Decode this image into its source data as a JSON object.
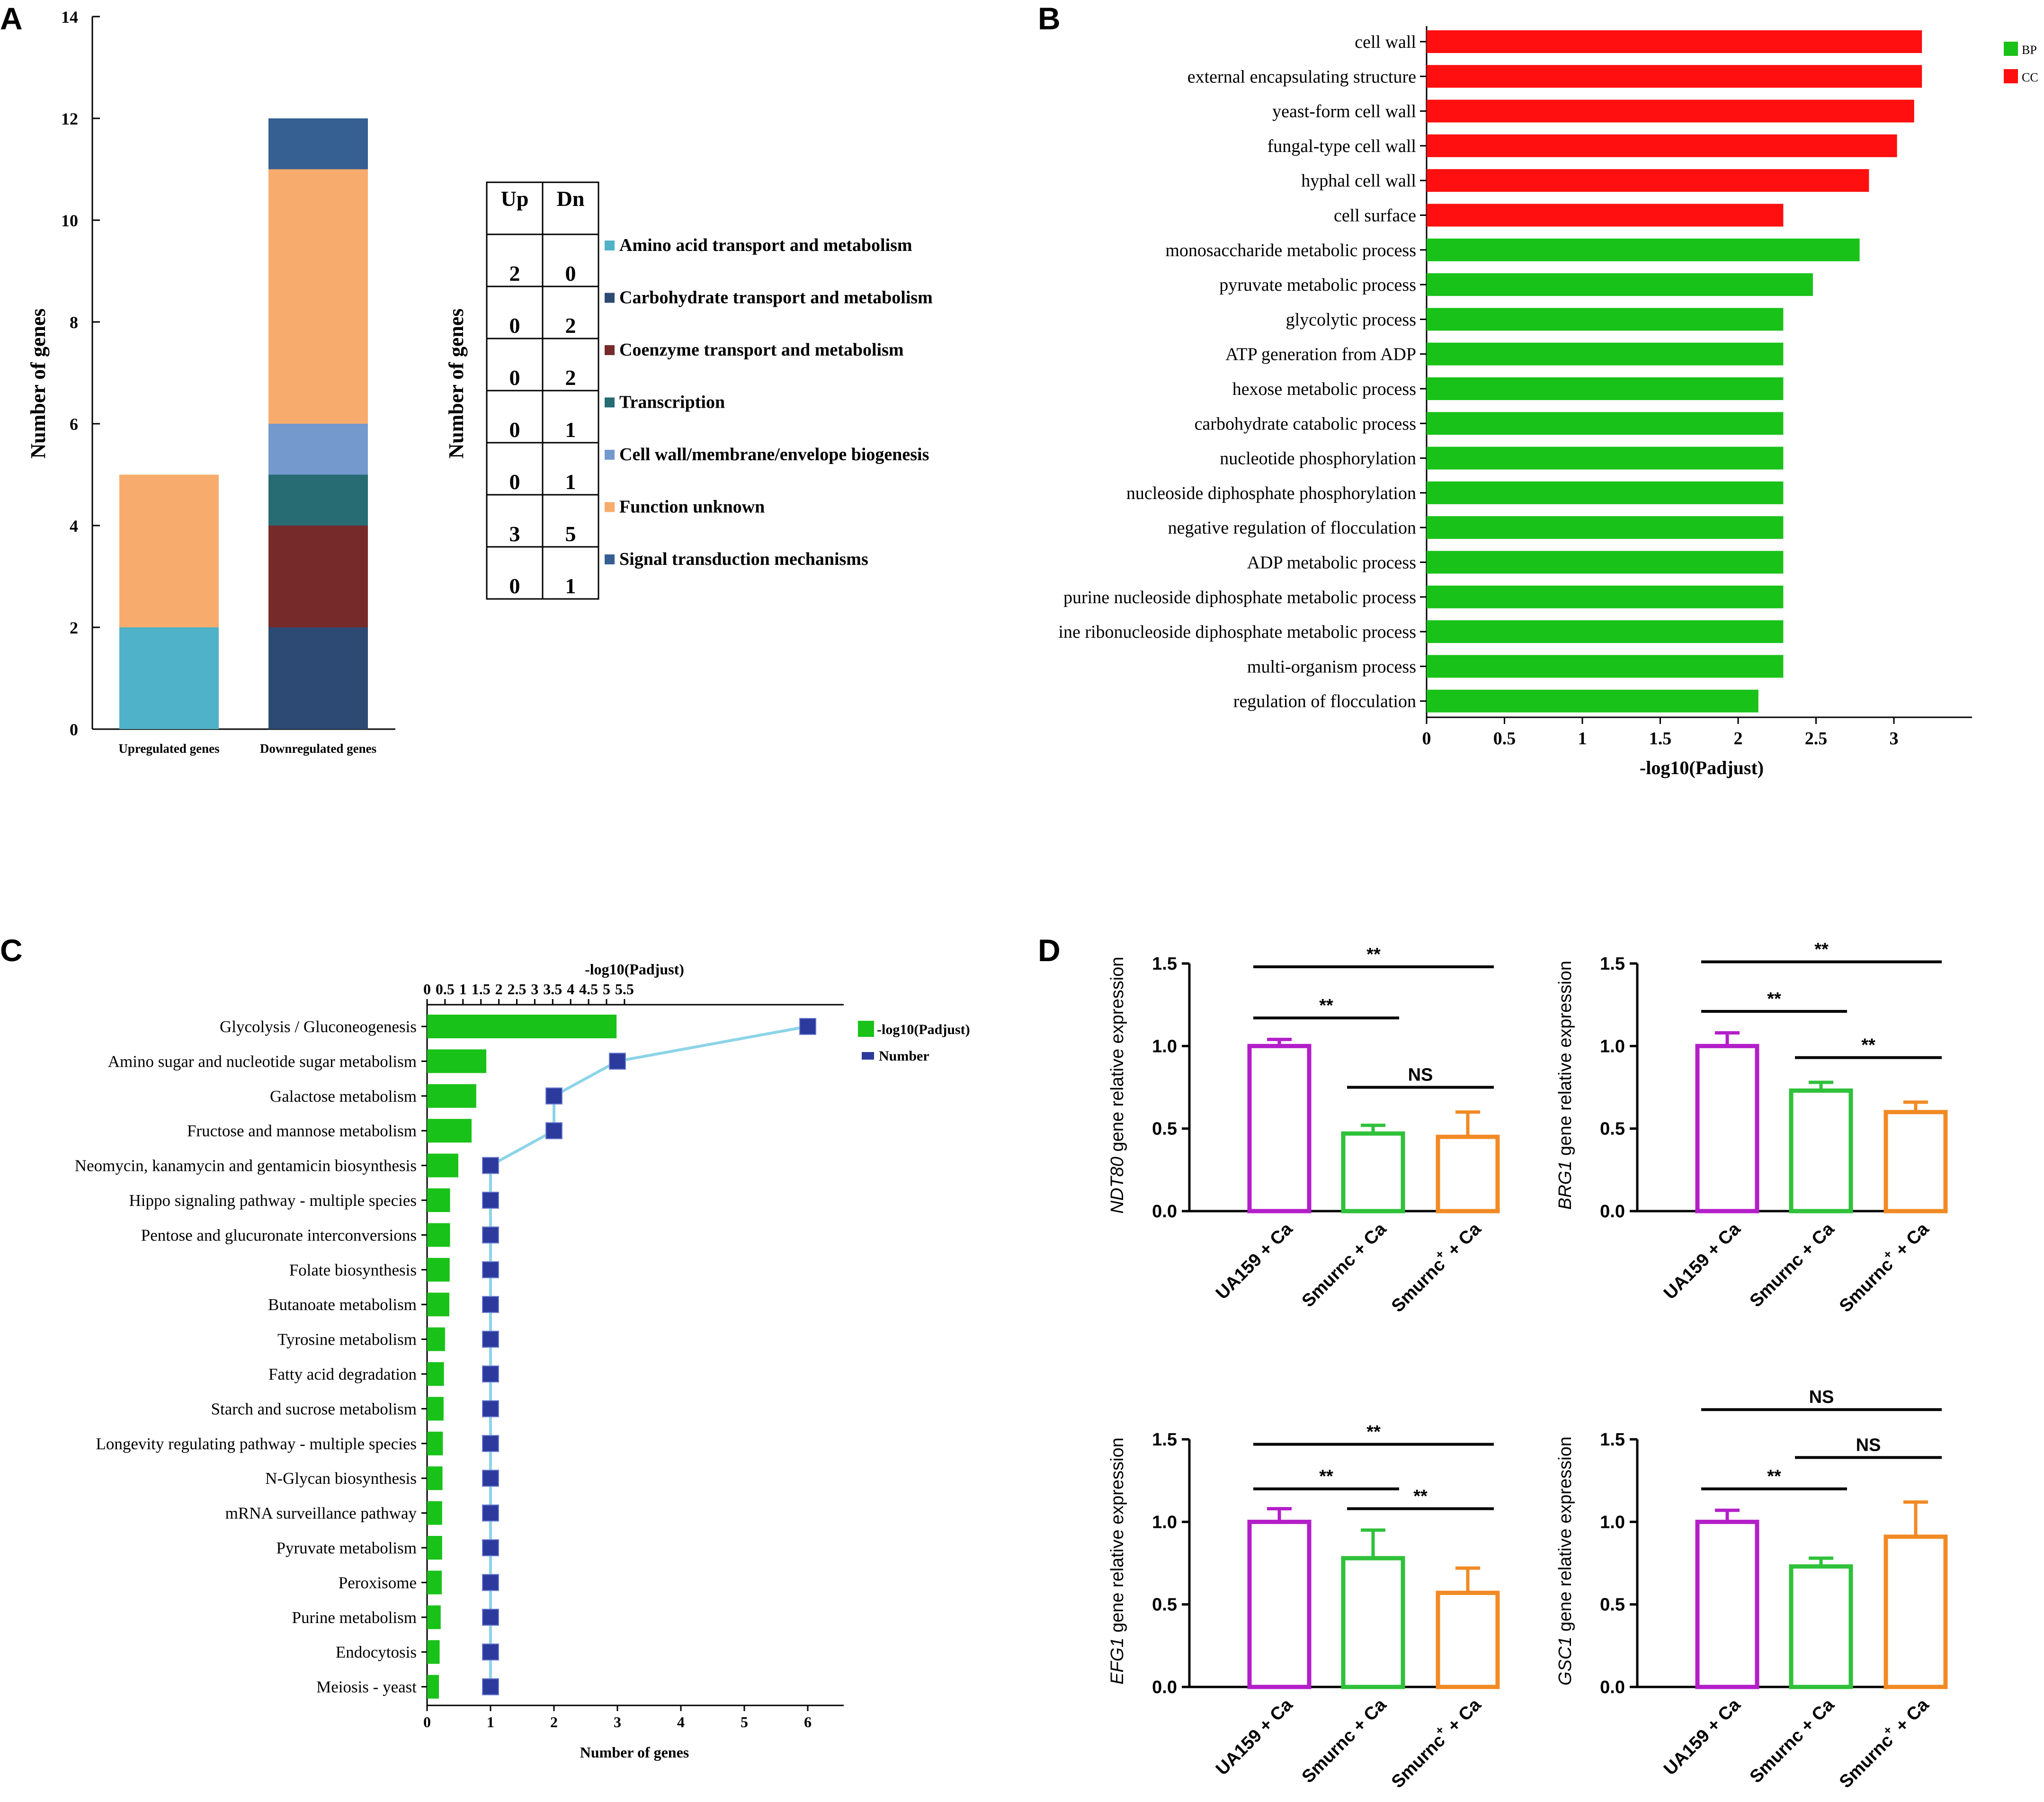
{
  "colors": {
    "green": "#19c219",
    "red": "#ff0f0f",
    "bar_teal": "#4fb2c8",
    "bar_orange": "#f7ac6d",
    "bar_navy": "#2c4a73",
    "bar_maroon": "#772a2a",
    "bar_darkteal": "#276b73",
    "bar_lightblue": "#7499cd",
    "bar_steel": "#365f92",
    "marker_blue": "#2b3a9c",
    "line_lightblue": "#8cd4e8",
    "purple": "#b31ec9",
    "qgreen": "#2fc13a",
    "qorange": "#f18a24",
    "black": "#000000"
  },
  "panels": {
    "A": {
      "letter": "A",
      "ylabel": "Number of genes",
      "table_ylabel": "Number of genes",
      "table_headers": [
        "Up",
        "Dn"
      ],
      "legend": [
        {
          "label": "Amino acid transport and metabolism",
          "up": "2",
          "dn": "0",
          "color": "#4fb2c8",
          "icon": "amino-acid-swatch"
        },
        {
          "label": "Carbohydrate transport and metabolism",
          "up": "0",
          "dn": "2",
          "color": "#2c4a73",
          "icon": "carbohydrate-swatch"
        },
        {
          "label": "Coenzyme transport and metabolism",
          "up": "0",
          "dn": "2",
          "color": "#772a2a",
          "icon": "coenzyme-swatch"
        },
        {
          "label": "Transcription",
          "up": "0",
          "dn": "1",
          "color": "#276b73",
          "icon": "transcription-swatch"
        },
        {
          "label": "Cell wall/membrane/envelope biogenesis",
          "up": "0",
          "dn": "1",
          "color": "#7499cd",
          "icon": "cell-wall-swatch"
        },
        {
          "label": "Function unknown",
          "up": "3",
          "dn": "5",
          "color": "#f7ac6d",
          "icon": "function-unknown-swatch"
        },
        {
          "label": "Signal transduction mechanisms",
          "up": "0",
          "dn": "1",
          "color": "#365f92",
          "icon": "signal-swatch"
        }
      ]
    },
    "B": {
      "letter": "B",
      "xlabel": "-log10(Padjust)",
      "legend": [
        {
          "label": "BP",
          "color": "#19c219"
        },
        {
          "label": "CC",
          "color": "#ff0f0f"
        }
      ]
    },
    "C": {
      "letter": "C",
      "top_xlabel": "-log10(Padjust)",
      "bottom_xlabel": "Number of genes",
      "legend": [
        {
          "label": "-log10(Padjust)",
          "color": "#19c219"
        },
        {
          "label": "Number",
          "color": "#2b3a9c"
        }
      ]
    },
    "D": {
      "letter": "D"
    }
  },
  "chart_data": [
    {
      "panel": "A",
      "type": "bar",
      "stacked": true,
      "categories": [
        "Upregulated genes",
        "Downregulated genes"
      ],
      "series": [
        {
          "name": "Amino acid transport and metabolism",
          "values": [
            2,
            0
          ]
        },
        {
          "name": "Carbohydrate transport and metabolism",
          "values": [
            0,
            2
          ]
        },
        {
          "name": "Coenzyme transport and metabolism",
          "values": [
            0,
            2
          ]
        },
        {
          "name": "Transcription",
          "values": [
            0,
            1
          ]
        },
        {
          "name": "Cell wall/membrane/envelope biogenesis",
          "values": [
            0,
            1
          ]
        },
        {
          "name": "Function unknown",
          "values": [
            3,
            5
          ]
        },
        {
          "name": "Signal transduction mechanisms",
          "values": [
            0,
            1
          ]
        }
      ],
      "ylabel": "Number of genes",
      "ylim": [
        0,
        14
      ],
      "yticks": [
        0,
        2,
        4,
        6,
        8,
        10,
        12,
        14
      ]
    },
    {
      "panel": "B",
      "type": "bar",
      "orientation": "horizontal",
      "categories": [
        "cell wall",
        "external encapsulating structure",
        "yeast-form cell wall",
        "fungal-type cell wall",
        "hyphal cell wall",
        "cell surface",
        "monosaccharide metabolic process",
        "pyruvate metabolic process",
        "glycolytic process",
        "ATP generation from ADP",
        "hexose metabolic process",
        "carbohydrate catabolic process",
        "nucleotide phosphorylation",
        "nucleoside diphosphate phosphorylation",
        "negative regulation of flocculation",
        "ADP metabolic process",
        "purine nucleoside diphosphate metabolic process",
        "ine ribonucleoside diphosphate metabolic process",
        "multi-organism process",
        "regulation of flocculation"
      ],
      "values": [
        3.18,
        3.18,
        3.13,
        3.02,
        2.84,
        2.29,
        2.78,
        2.48,
        2.29,
        2.29,
        2.29,
        2.29,
        2.29,
        2.29,
        2.29,
        2.29,
        2.29,
        2.29,
        2.29,
        2.13
      ],
      "groups": [
        "CC",
        "CC",
        "CC",
        "CC",
        "CC",
        "CC",
        "BP",
        "BP",
        "BP",
        "BP",
        "BP",
        "BP",
        "BP",
        "BP",
        "BP",
        "BP",
        "BP",
        "BP",
        "BP",
        "BP"
      ],
      "xlabel": "-log10(Padjust)",
      "xlim": [
        0,
        3.5
      ],
      "xticks": [
        "0",
        "0.5",
        "1",
        "1.5",
        "2",
        "2.5",
        "3"
      ]
    },
    {
      "panel": "C",
      "type": "bar",
      "orientation": "horizontal",
      "categories": [
        "Glycolysis / Gluconeogenesis",
        "Amino sugar and nucleotide sugar metabolism",
        "Galactose metabolism",
        "Fructose and mannose metabolism",
        "Neomycin, kanamycin and gentamicin biosynthesis",
        "Hippo signaling pathway - multiple species",
        "Pentose and glucuronate interconversions",
        "Folate biosynthesis",
        "Butanoate metabolism",
        "Tyrosine metabolism",
        "Fatty acid degradation",
        "Starch and sucrose metabolism",
        "Longevity regulating pathway - multiple species",
        "N-Glycan biosynthesis",
        "mRNA surveillance pathway",
        "Pyruvate metabolism",
        "Peroxisome",
        "Purine metabolism",
        "Endocytosis",
        "Meiosis - yeast"
      ],
      "series": [
        {
          "name": "-log10(Padjust)",
          "axis": "top",
          "values": [
            5.28,
            1.65,
            1.37,
            1.24,
            0.87,
            0.64,
            0.64,
            0.63,
            0.62,
            0.5,
            0.47,
            0.46,
            0.44,
            0.43,
            0.42,
            0.42,
            0.41,
            0.38,
            0.35,
            0.33
          ]
        },
        {
          "name": "Number",
          "axis": "bottom",
          "values": [
            6,
            3,
            2,
            2,
            1,
            1,
            1,
            1,
            1,
            1,
            1,
            1,
            1,
            1,
            1,
            1,
            1,
            1,
            1,
            1
          ]
        }
      ],
      "top_xlim": [
        0,
        5.8
      ],
      "top_xticks": [
        "0",
        "0.5",
        "1",
        "1.5",
        "2",
        "2.5",
        "3",
        "3.5",
        "4",
        "4.5",
        "5",
        "5.5"
      ],
      "bottom_xlim": [
        0,
        6.6
      ],
      "bottom_xticks": [
        "0",
        "1",
        "2",
        "3",
        "4",
        "5",
        "6"
      ],
      "bottom_xlabel": "Number of genes",
      "top_xlabel": "-log10(Padjust)"
    },
    {
      "panel": "D1",
      "type": "bar",
      "gene": "NDT80",
      "ylabel_suffix": " gene relative expression",
      "categories": [
        "UA159 + Ca",
        "Smurnc + Ca",
        "Smurnc+ + Ca"
      ],
      "category_labels": [
        {
          "main": "UA159 + Ca",
          "sup": ""
        },
        {
          "main": "Smurnc + Ca",
          "sup": ""
        },
        {
          "main": "Smurnc",
          "sup": "+",
          "tail": " + Ca"
        }
      ],
      "values": [
        1.0,
        0.47,
        0.45
      ],
      "errors": [
        0.04,
        0.05,
        0.15
      ],
      "ylim": [
        0,
        1.5
      ],
      "yticks": [
        "0.0",
        "0.5",
        "1.0",
        "1.5"
      ],
      "significance": [
        {
          "from": 0,
          "to": 2,
          "label": "**",
          "level": 1.48
        },
        {
          "from": 0,
          "to": 1,
          "label": "**",
          "level": 1.17
        },
        {
          "from": 1,
          "to": 2,
          "label": "NS",
          "level": 0.75
        }
      ]
    },
    {
      "panel": "D2",
      "type": "bar",
      "gene": "BRG1",
      "ylabel_suffix": " gene relative expression",
      "categories": [
        "UA159 + Ca",
        "Smurnc + Ca",
        "Smurnc+ + Ca"
      ],
      "category_labels": [
        {
          "main": "UA159 + Ca",
          "sup": ""
        },
        {
          "main": "Smurnc + Ca",
          "sup": ""
        },
        {
          "main": "Smurnc",
          "sup": "+",
          "tail": " + Ca"
        }
      ],
      "values": [
        1.0,
        0.73,
        0.6
      ],
      "errors": [
        0.08,
        0.05,
        0.06
      ],
      "ylim": [
        0,
        1.5
      ],
      "yticks": [
        "0.0",
        "0.5",
        "1.0",
        "1.5"
      ],
      "significance": [
        {
          "from": 0,
          "to": 2,
          "label": "**",
          "level": 1.51
        },
        {
          "from": 0,
          "to": 1,
          "label": "**",
          "level": 1.21
        },
        {
          "from": 1,
          "to": 2,
          "label": "**",
          "level": 0.93
        }
      ]
    },
    {
      "panel": "D3",
      "type": "bar",
      "gene": "EFG1",
      "ylabel_suffix": " gene relative expression",
      "categories": [
        "UA159 + Ca",
        "Smurnc + Ca",
        "Smurnc+ + Ca"
      ],
      "category_labels": [
        {
          "main": "UA159 + Ca",
          "sup": ""
        },
        {
          "main": "Smurnc + Ca",
          "sup": ""
        },
        {
          "main": "Smurnc",
          "sup": "+",
          "tail": " + Ca"
        }
      ],
      "values": [
        1.0,
        0.78,
        0.57
      ],
      "errors": [
        0.08,
        0.17,
        0.15
      ],
      "ylim": [
        0,
        1.5
      ],
      "yticks": [
        "0.0",
        "0.5",
        "1.0",
        "1.5"
      ],
      "significance": [
        {
          "from": 0,
          "to": 2,
          "label": "**",
          "level": 1.47
        },
        {
          "from": 0,
          "to": 1,
          "label": "**",
          "level": 1.2
        },
        {
          "from": 1,
          "to": 2,
          "label": "**",
          "level": 1.08
        }
      ]
    },
    {
      "panel": "D4",
      "type": "bar",
      "gene": "GSC1",
      "ylabel_suffix": " gene relative expression",
      "categories": [
        "UA159 + Ca",
        "Smurnc + Ca",
        "Smurnc+ + Ca"
      ],
      "category_labels": [
        {
          "main": "UA159 + Ca",
          "sup": ""
        },
        {
          "main": "Smurnc + Ca",
          "sup": ""
        },
        {
          "main": "Smurnc",
          "sup": "+",
          "tail": " + Ca"
        }
      ],
      "values": [
        1.0,
        0.73,
        0.91
      ],
      "errors": [
        0.07,
        0.05,
        0.21
      ],
      "ylim": [
        0,
        1.5
      ],
      "yticks": [
        "0.0",
        "0.5",
        "1.0",
        "1.5"
      ],
      "significance": [
        {
          "from": 0,
          "to": 2,
          "label": "NS",
          "level": 1.68
        },
        {
          "from": 1,
          "to": 2,
          "label": "NS",
          "level": 1.39
        },
        {
          "from": 0,
          "to": 1,
          "label": "**",
          "level": 1.2
        }
      ]
    }
  ]
}
